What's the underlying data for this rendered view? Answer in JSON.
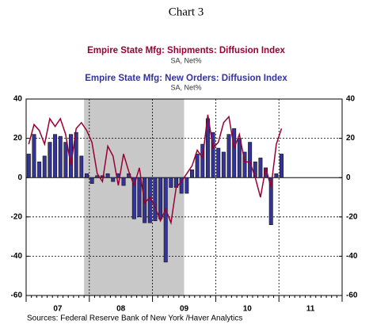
{
  "chart_data": {
    "type": "bar_line",
    "title": "Chart 3",
    "subtitle_1": "Empire State Mfg: Shipments: Diffusion Index",
    "note_1": "SA, Net%",
    "subtitle_2": "Empire State Mfg: New Orders: Diffusion Index",
    "note_2": "SA, Net%",
    "source": "Sources:  Federal Reserve Bank of New York /Haver Analytics",
    "categories": [
      null,
      null,
      null,
      null,
      null,
      "07",
      null,
      null,
      null,
      null,
      null,
      null,
      null,
      null,
      null,
      null,
      null,
      "08",
      null,
      null,
      null,
      null,
      null,
      null,
      null,
      null,
      null,
      null,
      null,
      "09",
      null,
      null,
      null,
      null,
      null,
      null,
      null,
      null,
      null,
      null,
      null,
      "10",
      null,
      null,
      null,
      null,
      null,
      null,
      null,
      null,
      null,
      null,
      null,
      "11",
      null,
      null,
      null,
      null,
      null,
      null
    ],
    "shaded_range": [
      11,
      30
    ],
    "series": [
      {
        "name": "Empire State Mfg: New Orders: Diffusion Index",
        "kind": "bar",
        "color": "#333399",
        "values": [
          12,
          22,
          8,
          11,
          18,
          22,
          21,
          18,
          22,
          23,
          11,
          2,
          -3,
          1,
          1,
          2,
          -2,
          2,
          -4,
          2,
          -21,
          -20,
          -23,
          -23,
          -22,
          -21,
          -43,
          -5,
          -5,
          -8,
          -8,
          4,
          12,
          17,
          30,
          23,
          15,
          13,
          22,
          25,
          20,
          13,
          18,
          8,
          10,
          5,
          -24,
          2,
          12,
          null,
          null,
          null,
          null,
          null,
          null,
          null,
          null,
          null,
          null,
          null
        ]
      },
      {
        "name": "Empire State Mfg: Shipments: Diffusion Index",
        "kind": "line",
        "color": "#990033",
        "values": [
          17,
          27,
          24,
          17,
          30,
          26,
          30,
          22,
          6,
          25,
          28,
          24,
          18,
          2,
          -2,
          16,
          11,
          -4,
          12,
          3,
          -4,
          5,
          -13,
          -10,
          -15,
          -22,
          -16,
          -23,
          -5,
          -2,
          2,
          6,
          14,
          10,
          32,
          15,
          18,
          28,
          31,
          15,
          22,
          8,
          8,
          0,
          -10,
          5,
          -5,
          17,
          25,
          null,
          null,
          null,
          null,
          null,
          null,
          null,
          null,
          null,
          null,
          null
        ]
      }
    ],
    "ylim": [
      -60,
      40
    ],
    "yticks": [
      -60,
      -40,
      -20,
      0,
      20,
      40
    ],
    "y2lim": [
      -60,
      40
    ],
    "y2ticks": [
      -60,
      -40,
      -20,
      0,
      20,
      40
    ],
    "grid": true
  }
}
